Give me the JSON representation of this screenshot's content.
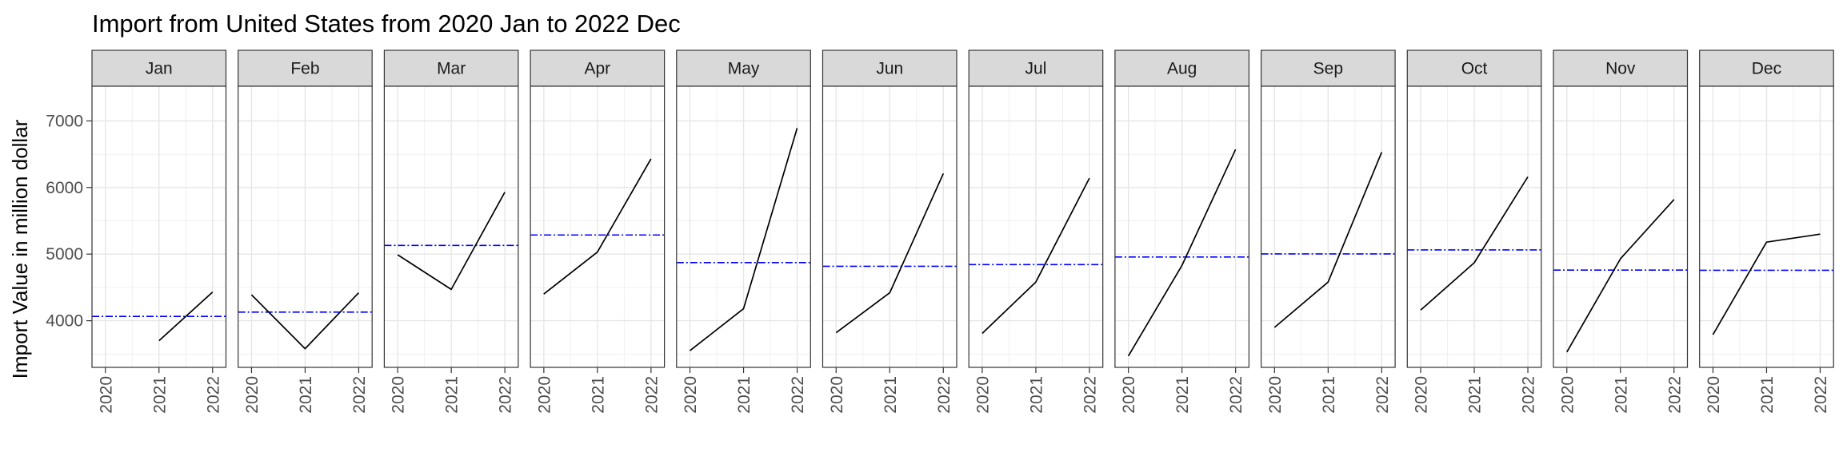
{
  "chart_data": {
    "type": "line",
    "title": "Import from United States from 2020 Jan to 2022 Dec",
    "xlabel": "",
    "ylabel": "Import Value in million dollar",
    "x": [
      "2020",
      "2021",
      "2022"
    ],
    "yticks": [
      "4000",
      "5000",
      "6000",
      "7000"
    ],
    "ylim": [
      3300,
      7520
    ],
    "grid": true,
    "reference_line": {
      "style": "dash-dot",
      "color": "#0000ff",
      "meaning": "mean of panel values"
    },
    "line_color": "#000000",
    "strip_fill": "#d9d9d9",
    "panels": [
      {
        "label": "Jan",
        "values": [
          null,
          3700,
          4430
        ],
        "mean": 4065
      },
      {
        "label": "Feb",
        "values": [
          4390,
          3580,
          4420
        ],
        "mean": 4130
      },
      {
        "label": "Mar",
        "values": [
          4990,
          4470,
          5930
        ],
        "mean": 5130
      },
      {
        "label": "Apr",
        "values": [
          4400,
          5030,
          6430
        ],
        "mean": 5287
      },
      {
        "label": "May",
        "values": [
          3550,
          4180,
          6890
        ],
        "mean": 4873
      },
      {
        "label": "Jun",
        "values": [
          3820,
          4420,
          6210
        ],
        "mean": 4817
      },
      {
        "label": "Jul",
        "values": [
          3810,
          4580,
          6140
        ],
        "mean": 4843
      },
      {
        "label": "Aug",
        "values": [
          3470,
          4830,
          6570
        ],
        "mean": 4957
      },
      {
        "label": "Sep",
        "values": [
          3900,
          4580,
          6530
        ],
        "mean": 5003
      },
      {
        "label": "Oct",
        "values": [
          4160,
          4870,
          6160
        ],
        "mean": 5063
      },
      {
        "label": "Nov",
        "values": [
          3530,
          4930,
          5820
        ],
        "mean": 4760
      },
      {
        "label": "Dec",
        "values": [
          3790,
          5180,
          5300
        ],
        "mean": 4757
      }
    ]
  }
}
